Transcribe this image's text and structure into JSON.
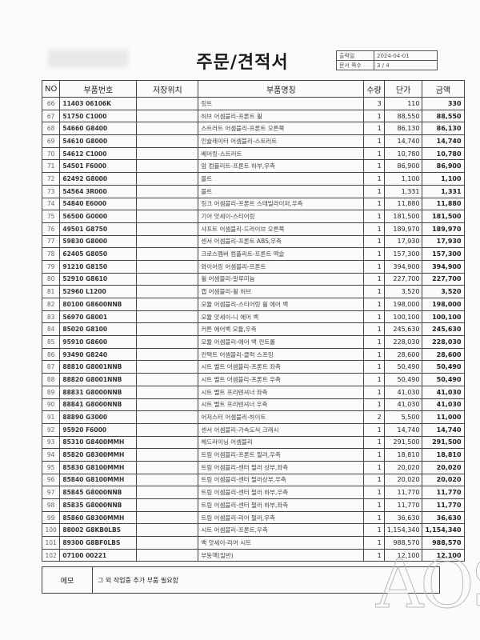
{
  "header": {
    "title": "주문/견적서",
    "info": [
      {
        "label": "출력일",
        "value": "2024-04-01"
      },
      {
        "label": "문서 쪽수",
        "value": "3 / 4"
      }
    ]
  },
  "table": {
    "columns": [
      "NO",
      "부품번호",
      "저장위치",
      "부품명칭",
      "수량",
      "단가",
      "금액"
    ],
    "rows": [
      [
        "66",
        "11403 06106K",
        "",
        "링트",
        "3",
        "110",
        "330"
      ],
      [
        "67",
        "51750 C1000",
        "",
        "허브 어셈블리-프론트 휠",
        "1",
        "88,550",
        "88,550"
      ],
      [
        "68",
        "54660 G8400",
        "",
        "스트러트 어셈블리-프론트 오른쪽",
        "1",
        "86,130",
        "86,130"
      ],
      [
        "69",
        "54610 G8000",
        "",
        "인슐레이터 어셈블리-스트러트",
        "1",
        "14,740",
        "14,740"
      ],
      [
        "70",
        "54612 C1000",
        "",
        "베어링-스트러트",
        "1",
        "10,780",
        "10,780"
      ],
      [
        "71",
        "54501 F6000",
        "",
        "암 컴플리트-프론트 하부,우측",
        "1",
        "86,900",
        "86,900"
      ],
      [
        "72",
        "62492 G8000",
        "",
        "볼트",
        "1",
        "1,100",
        "1,100"
      ],
      [
        "73",
        "54564 3R000",
        "",
        "볼트",
        "1",
        "1,331",
        "1,331"
      ],
      [
        "74",
        "54840 E6000",
        "",
        "링크 어셈블리-프론트 스태빌라이저,우측",
        "1",
        "11,880",
        "11,880"
      ],
      [
        "75",
        "56500 G0000",
        "",
        "기어 앗세이-스티어링",
        "1",
        "181,500",
        "181,500"
      ],
      [
        "76",
        "49501 G8750",
        "",
        "샤프트 어셈블리-드라이브 오른쪽",
        "1",
        "189,970",
        "189,970"
      ],
      [
        "77",
        "59830 G8000",
        "",
        "센서 어셈블리-프론트 ABS,우측",
        "1",
        "17,930",
        "17,930"
      ],
      [
        "78",
        "62405 G8050",
        "",
        "크로스멤버 컴플리트-프론트 액슬",
        "1",
        "157,300",
        "157,300"
      ],
      [
        "79",
        "91210 G8150",
        "",
        "와이어링 어셈블리-프론트",
        "1",
        "394,900",
        "394,900"
      ],
      [
        "80",
        "52910 G8610",
        "",
        "휠 어셈블리-알루미늄",
        "1",
        "227,700",
        "227,700"
      ],
      [
        "81",
        "52960 L1200",
        "",
        "캡 어셈블리-휠 허브",
        "1",
        "3,520",
        "3,520"
      ],
      [
        "82",
        "80100 G8600NNB",
        "",
        "모듈 어셈블리-스티어링 휠 에어 백",
        "1",
        "198,000",
        "198,000"
      ],
      [
        "83",
        "56970 G8001",
        "",
        "모듈 앗세이-니 에어 백",
        "1",
        "100,100",
        "100,100"
      ],
      [
        "84",
        "85020 G8100",
        "",
        "커튼 에어백 모듈,우측",
        "1",
        "245,630",
        "245,630"
      ],
      [
        "85",
        "95910 G8600",
        "",
        "모듈 어셈블리-에어 백 컨트롤",
        "1",
        "228,030",
        "228,030"
      ],
      [
        "86",
        "93490 G8240",
        "",
        "컨택트 어셈블리-클럭 스프링",
        "1",
        "28,600",
        "28,600"
      ],
      [
        "87",
        "88810 G8001NNB",
        "",
        "시트 벨트 어셈블리-프론트 좌측",
        "1",
        "50,490",
        "50,490"
      ],
      [
        "88",
        "88820 G8001NNB",
        "",
        "시트 벨트 어셈블리-프론트 우측",
        "1",
        "50,490",
        "50,490"
      ],
      [
        "89",
        "88831 G8000NNB",
        "",
        "시트 벨트 프리텐셔너 좌측",
        "1",
        "41,030",
        "41,030"
      ],
      [
        "90",
        "88841 G8000NNB",
        "",
        "시트 벨트 프리텐셔너 우측",
        "1",
        "41,030",
        "41,030"
      ],
      [
        "91",
        "88890 G3000",
        "",
        "어저스터 어셈블리-하이트",
        "2",
        "5,500",
        "11,000"
      ],
      [
        "92",
        "95920 F6000",
        "",
        "센서 어셈블리-가속도식 크래시",
        "1",
        "14,740",
        "14,740"
      ],
      [
        "93",
        "85310 G8400MMH",
        "",
        "헤드라이닝 어셈블리",
        "1",
        "291,500",
        "291,500"
      ],
      [
        "94",
        "85820 G8300MMH",
        "",
        "트림 어셈블리-프론트 필러,우측",
        "1",
        "18,810",
        "18,810"
      ],
      [
        "95",
        "85830 G8100MMH",
        "",
        "트림 어셈블리-센터 필러 상부,좌측",
        "1",
        "20,020",
        "20,020"
      ],
      [
        "96",
        "85840 G8100MMH",
        "",
        "트림 어셈블리-센터 필러상부,우측",
        "1",
        "20,020",
        "20,020"
      ],
      [
        "97",
        "85845 G8000NNB",
        "",
        "트림 어셈블리-센터 필러 하부,우측",
        "1",
        "11,770",
        "11,770"
      ],
      [
        "98",
        "85835 G8000NNB",
        "",
        "트림 어셈블리-센터 필러 하부,좌측",
        "1",
        "11,770",
        "11,770"
      ],
      [
        "99",
        "85860 G8300MMH",
        "",
        "트림 어셈블리-리어 필러,우측",
        "1",
        "36,630",
        "36,630"
      ],
      [
        "100",
        "88002 G8KB0LBS",
        "",
        "시트 어셈블리-프론트,우측",
        "1",
        "1,154,340",
        "1,154,340"
      ],
      [
        "101",
        "89300 G8BF0LBS",
        "",
        "백 앗세이-리어 시트",
        "1",
        "988,570",
        "988,570"
      ],
      [
        "102",
        "07100 00221",
        "",
        "부동액(일반)",
        "1",
        "12,100",
        "12,100"
      ]
    ]
  },
  "memo": {
    "label": "메모",
    "value": "그 외 작업중 추가 부품 필요함"
  },
  "watermark": "AOS"
}
